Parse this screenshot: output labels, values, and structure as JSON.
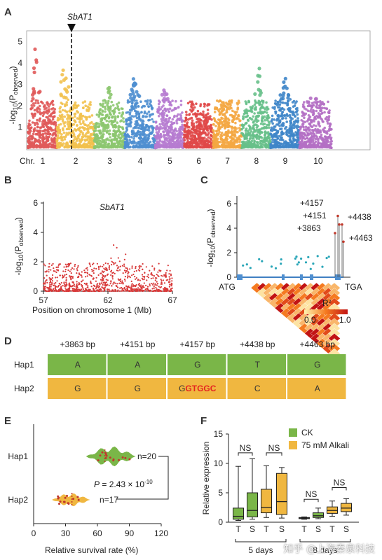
{
  "panels": {
    "A": "A",
    "B": "B",
    "C": "C",
    "D": "D",
    "E": "E",
    "F": "F"
  },
  "panel_a": {
    "gene": "SbAT1",
    "ylabel_base": "-log",
    "ylabel_sub": "10",
    "ylabel_p": "(P",
    "ylabel_obs": "observed",
    "ylabel_close": ")",
    "chr_label": "Chr.",
    "chromosomes": [
      "1",
      "2",
      "3",
      "4",
      "5",
      "6",
      "7",
      "8",
      "9",
      "10"
    ],
    "yticks": [
      "1",
      "2",
      "3",
      "4",
      "5"
    ],
    "colors": [
      "#e05a5a",
      "#f2c14e",
      "#8cc76f",
      "#4f8fd0",
      "#b67bd0",
      "#e04848",
      "#f4a742",
      "#67c08a",
      "#3f86c9",
      "#b46fc4"
    ]
  },
  "panel_b": {
    "gene": "SbAT1",
    "ylabel_base": "-log",
    "ylabel_sub": "10",
    "ylabel_p": "(P",
    "ylabel_obs": "observed",
    "ylabel_close": ")",
    "xlabel": "Position on chromosome 1 (Mb)",
    "xticks": [
      "57",
      "62",
      "67"
    ],
    "yticks": [
      "0",
      "2",
      "4",
      "6"
    ],
    "color": "#d83a3a"
  },
  "panel_c": {
    "ylabel_base": "-log",
    "ylabel_sub": "10",
    "ylabel_p": "(P",
    "ylabel_obs": "observed",
    "ylabel_close": ")",
    "yticks": [
      "0",
      "2",
      "4",
      "6"
    ],
    "atg": "ATG",
    "tga": "TGA",
    "r2_label": "R",
    "r2_sup": "2",
    "r2_min": "0.0",
    "r2_max": "1.0",
    "snps": [
      {
        "label": "+4157",
        "value": 5.0
      },
      {
        "label": "+4151",
        "value": 4.3
      },
      {
        "label": "+4438",
        "value": 4.3
      },
      {
        "label": "+3863",
        "value": 3.6
      },
      {
        "label": "+4463",
        "value": 2.9
      }
    ]
  },
  "panel_d": {
    "positions": [
      "+3863 bp",
      "+4151 bp",
      "+4157 bp",
      "+4438 bp",
      "+4463 bp"
    ],
    "haplotypes": [
      {
        "name": "Hap1",
        "color": "#7ab648",
        "alleles": [
          "A",
          "A",
          "G",
          "T",
          "G"
        ]
      },
      {
        "name": "Hap2",
        "color": "#f0b740",
        "alleles": [
          "G",
          "G",
          "G",
          "C",
          "A"
        ],
        "insertion": "GTGGC",
        "insertion_col": 2
      }
    ]
  },
  "chart_data": [
    {
      "type": "violin",
      "categories": [
        "Hap1",
        "Hap2"
      ],
      "n_labels": [
        "n=20",
        "n=17"
      ],
      "medians": [
        67,
        36
      ],
      "xlabel": "Relative survival rate (%)",
      "xticks": [
        "0",
        "30",
        "60",
        "90",
        "120"
      ],
      "xlim": [
        0,
        120
      ],
      "pvalue_prefix": "P",
      "pvalue_text": " = 2.43 × 10",
      "pvalue_exp": "-10",
      "colors": {
        "Hap1": "#7ab648",
        "Hap2": "#f0b740"
      }
    },
    {
      "type": "box",
      "ylabel": "Relative expression",
      "ylim": [
        0,
        15
      ],
      "yticks": [
        "0",
        "5",
        "10",
        "15"
      ],
      "legend": [
        {
          "name": "CK",
          "color": "#7ab648"
        },
        {
          "name": "75 mM Alkali",
          "color": "#f0b740"
        }
      ],
      "groups": [
        "5 days",
        "8 days"
      ],
      "boxes": [
        {
          "group": "5 days",
          "label": "T",
          "series": "CK",
          "min": 0.3,
          "q1": 0.5,
          "median": 1.0,
          "q3": 2.4,
          "max": 9.5
        },
        {
          "group": "5 days",
          "label": "S",
          "series": "CK",
          "min": 0.5,
          "q1": 0.9,
          "median": 2.0,
          "q3": 5.0,
          "max": 10.8
        },
        {
          "group": "5 days",
          "label": "T",
          "series": "75 mM Alkali",
          "min": 0.8,
          "q1": 1.6,
          "median": 2.5,
          "q3": 5.6,
          "max": 9.6
        },
        {
          "group": "5 days",
          "label": "S",
          "series": "75 mM Alkali",
          "min": 0.7,
          "q1": 1.3,
          "median": 3.5,
          "q3": 8.3,
          "max": 9.3
        },
        {
          "group": "8 days",
          "label": "T",
          "series": "CK",
          "min": 0.5,
          "q1": 0.6,
          "median": 0.7,
          "q3": 0.8,
          "max": 0.9
        },
        {
          "group": "8 days",
          "label": "S",
          "series": "CK",
          "min": 0.6,
          "q1": 0.8,
          "median": 1.1,
          "q3": 1.6,
          "max": 2.4
        },
        {
          "group": "8 days",
          "label": "T",
          "series": "75 mM Alkali",
          "min": 1.0,
          "q1": 1.5,
          "median": 2.0,
          "q3": 2.6,
          "max": 3.6
        },
        {
          "group": "8 days",
          "label": "S",
          "series": "75 mM Alkali",
          "min": 1.2,
          "q1": 1.8,
          "median": 2.4,
          "q3": 3.2,
          "max": 4.0
        }
      ],
      "annotations": [
        "NS",
        "NS",
        "NS",
        "NS"
      ]
    }
  ],
  "watermark": "知乎 @上海秦泉科技"
}
